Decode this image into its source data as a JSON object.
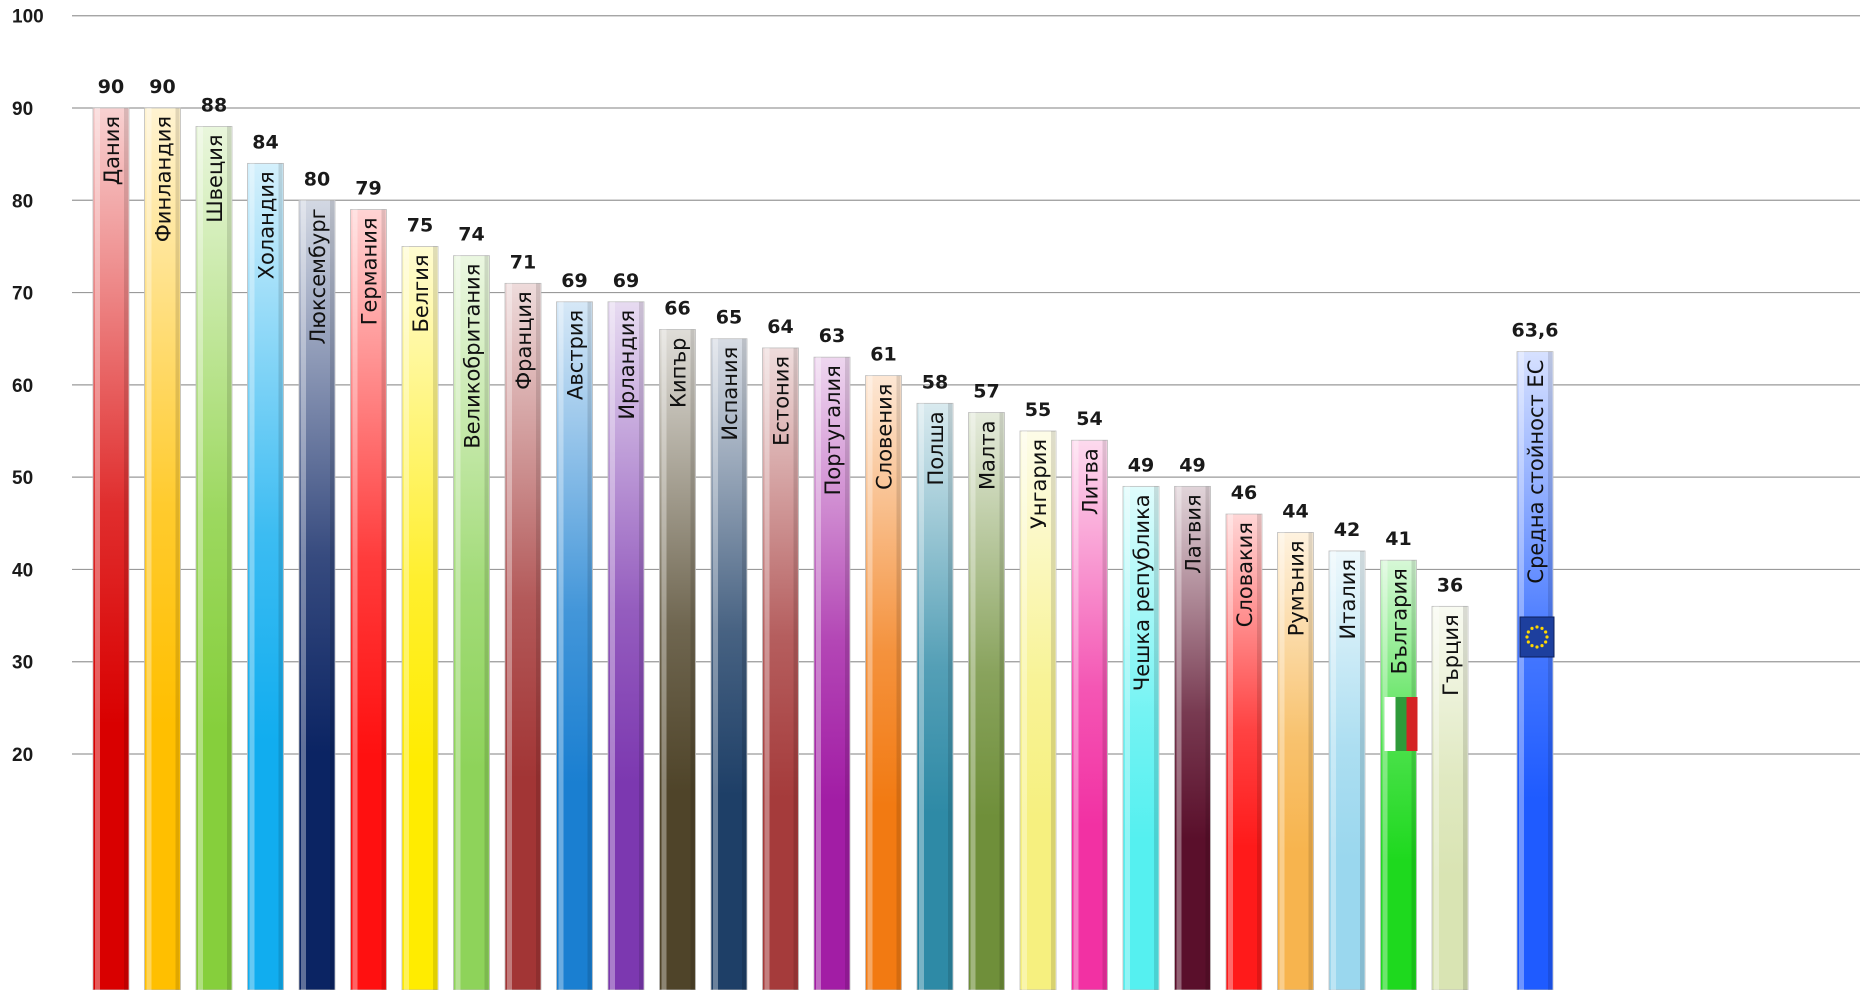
{
  "chart_data": {
    "type": "bar",
    "categories": [
      "Дания",
      "Финландия",
      "Швеция",
      "Холандия",
      "Люксембург",
      "Германия",
      "Белгия",
      "Великобритания",
      "Франция",
      "Австрия",
      "Ирландия",
      "Кипър",
      "Испания",
      "Естония",
      "Португалия",
      "Словения",
      "Полша",
      "Малта",
      "Унгария",
      "Литва",
      "Чешка република",
      "Латвия",
      "Словакия",
      "Румъния",
      "Италия",
      "България",
      "Гърция",
      "Средна стойност ЕС"
    ],
    "values": [
      90,
      90,
      88,
      84,
      80,
      79,
      75,
      74,
      71,
      69,
      69,
      66,
      65,
      64,
      63,
      61,
      58,
      57,
      55,
      54,
      49,
      49,
      46,
      44,
      42,
      41,
      36,
      63.6
    ],
    "value_labels": [
      "90",
      "90",
      "88",
      "84",
      "80",
      "79",
      "75",
      "74",
      "71",
      "69",
      "69",
      "66",
      "65",
      "64",
      "63",
      "61",
      "58",
      "57",
      "55",
      "54",
      "49",
      "49",
      "46",
      "44",
      "42",
      "41",
      "36",
      "63,6"
    ],
    "colors": [
      "#d90000",
      "#ffbf00",
      "#86cf3c",
      "#11adef",
      "#0b2463",
      "#ff1010",
      "#ffec00",
      "#8ed35a",
      "#a23535",
      "#1a7fd1",
      "#7c38b0",
      "#4f4429",
      "#1e3f67",
      "#a53b3b",
      "#a21da5",
      "#f27a12",
      "#2e8aa6",
      "#6f8f3a",
      "#f6f07f",
      "#f231a3",
      "#55f0f0",
      "#5a0f2b",
      "#ff1a1a",
      "#f7b44e",
      "#9ad7ee",
      "#1ed91e",
      "#d9e4b3",
      "#1f5bff"
    ],
    "ylim": [
      0,
      100
    ],
    "yticks": [
      "20",
      "30",
      "40",
      "50",
      "60",
      "70",
      "80",
      "90",
      "100"
    ],
    "grid": true,
    "xlabel": "",
    "ylabel": "",
    "title": ""
  }
}
